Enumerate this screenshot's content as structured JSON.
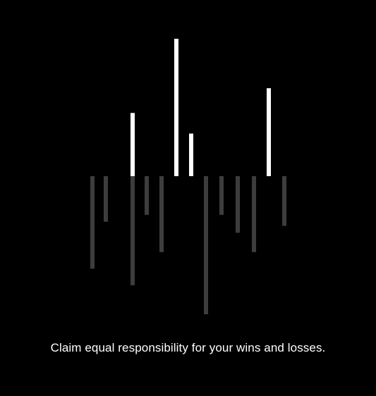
{
  "caption": "Claim equal responsibility for your wins and losses.",
  "colors": {
    "background": "#000000",
    "wins": "#ffffff",
    "losses": "#3d3d3d",
    "text": "#ffffff"
  },
  "chart_data": {
    "type": "bar",
    "wins": [
      0,
      0,
      0,
      0.46,
      0,
      0,
      1.0,
      0.31,
      0,
      0,
      0,
      0,
      0.64,
      0
    ],
    "losses": [
      0.67,
      0.33,
      0,
      0.79,
      0.28,
      0.55,
      0,
      0,
      1.0,
      0.28,
      0.41,
      0.55,
      0,
      0.36
    ]
  }
}
